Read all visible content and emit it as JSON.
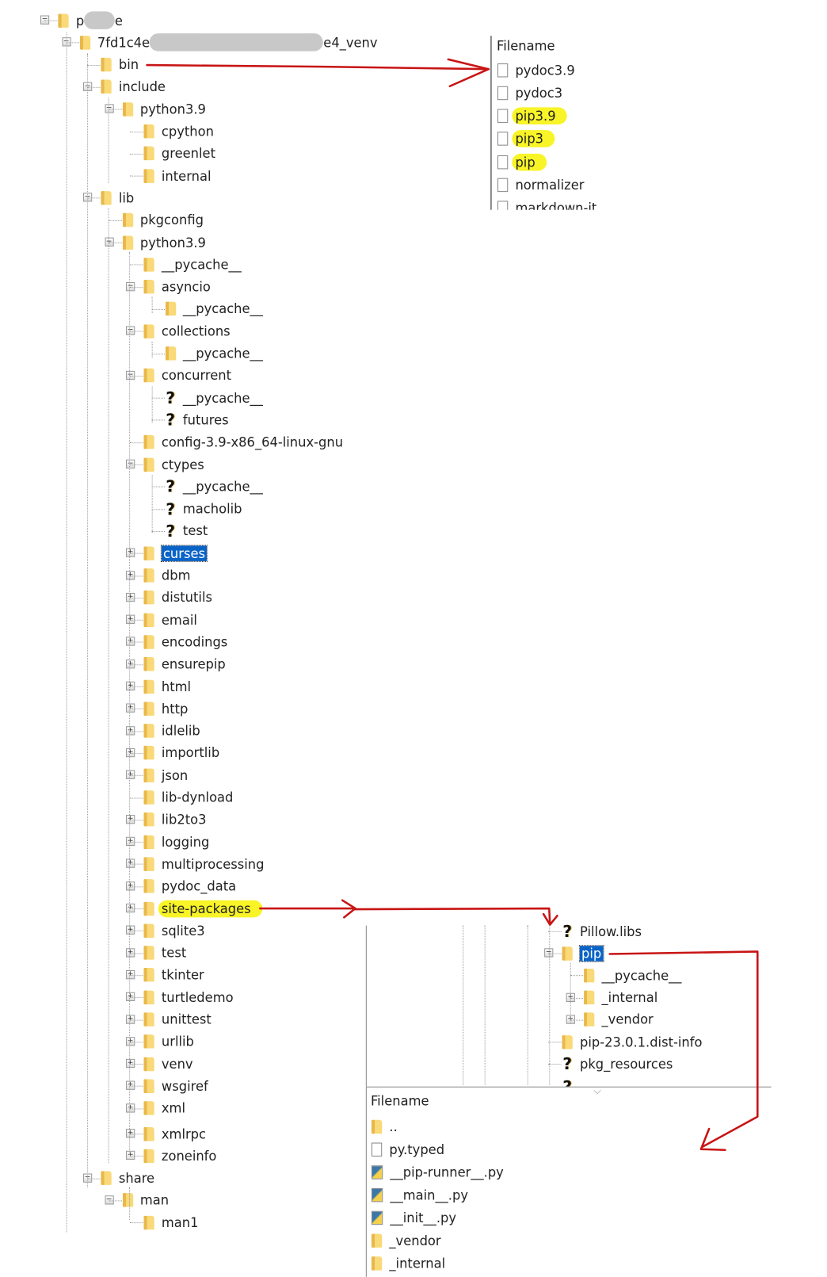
{
  "tree": [
    {
      "level": 0,
      "text": "p",
      "suffix": "e",
      "redacted": true,
      "exp": "minus",
      "icon": "folder"
    },
    {
      "level": 1,
      "text": "7fd1c4e",
      "suffix": "e4_venv",
      "redacted": true,
      "exp": "minus",
      "icon": "folder"
    },
    {
      "level": 2,
      "text": "bin",
      "exp": "",
      "icon": "folder"
    },
    {
      "level": 2,
      "text": "include",
      "exp": "minus",
      "icon": "folder"
    },
    {
      "level": 3,
      "text": "python3.9",
      "exp": "minus",
      "icon": "folder"
    },
    {
      "level": 4,
      "text": "cpython",
      "exp": "",
      "icon": "folder"
    },
    {
      "level": 4,
      "text": "greenlet",
      "exp": "",
      "icon": "folder"
    },
    {
      "level": 4,
      "text": "internal",
      "exp": "",
      "icon": "folder"
    },
    {
      "level": 2,
      "text": "lib",
      "exp": "minus",
      "icon": "folder"
    },
    {
      "level": 3,
      "text": "pkgconfig",
      "exp": "",
      "icon": "folder"
    },
    {
      "level": 3,
      "text": "python3.9",
      "exp": "minus",
      "icon": "folder"
    },
    {
      "level": 4,
      "text": "__pycache__",
      "exp": "",
      "icon": "folder"
    },
    {
      "level": 4,
      "text": "asyncio",
      "exp": "minus",
      "icon": "folder"
    },
    {
      "level": 5,
      "text": "__pycache__",
      "exp": "",
      "icon": "folder"
    },
    {
      "level": 4,
      "text": "collections",
      "exp": "minus",
      "icon": "folder"
    },
    {
      "level": 5,
      "text": "__pycache__",
      "exp": "",
      "icon": "folder"
    },
    {
      "level": 4,
      "text": "concurrent",
      "exp": "minus",
      "icon": "folder"
    },
    {
      "level": 5,
      "text": "__pycache__",
      "exp": "",
      "icon": "unknown"
    },
    {
      "level": 5,
      "text": "futures",
      "exp": "",
      "icon": "unknown"
    },
    {
      "level": 4,
      "text": "config-3.9-x86_64-linux-gnu",
      "exp": "",
      "icon": "folder"
    },
    {
      "level": 4,
      "text": "ctypes",
      "exp": "minus",
      "icon": "folder"
    },
    {
      "level": 5,
      "text": "__pycache__",
      "exp": "",
      "icon": "unknown"
    },
    {
      "level": 5,
      "text": "macholib",
      "exp": "",
      "icon": "unknown"
    },
    {
      "level": 5,
      "text": "test",
      "exp": "",
      "icon": "unknown"
    },
    {
      "level": 4,
      "text": "curses",
      "exp": "plus",
      "icon": "folder",
      "selected": true
    },
    {
      "level": 4,
      "text": "dbm",
      "exp": "plus",
      "icon": "folder"
    },
    {
      "level": 4,
      "text": "distutils",
      "exp": "plus",
      "icon": "folder"
    },
    {
      "level": 4,
      "text": "email",
      "exp": "plus",
      "icon": "folder"
    },
    {
      "level": 4,
      "text": "encodings",
      "exp": "plus",
      "icon": "folder"
    },
    {
      "level": 4,
      "text": "ensurepip",
      "exp": "plus",
      "icon": "folder"
    },
    {
      "level": 4,
      "text": "html",
      "exp": "plus",
      "icon": "folder"
    },
    {
      "level": 4,
      "text": "http",
      "exp": "plus",
      "icon": "folder"
    },
    {
      "level": 4,
      "text": "idlelib",
      "exp": "plus",
      "icon": "folder"
    },
    {
      "level": 4,
      "text": "importlib",
      "exp": "plus",
      "icon": "folder"
    },
    {
      "level": 4,
      "text": "json",
      "exp": "plus",
      "icon": "folder"
    },
    {
      "level": 4,
      "text": "lib-dynload",
      "exp": "",
      "icon": "folder"
    },
    {
      "level": 4,
      "text": "lib2to3",
      "exp": "plus",
      "icon": "folder"
    },
    {
      "level": 4,
      "text": "logging",
      "exp": "plus",
      "icon": "folder"
    },
    {
      "level": 4,
      "text": "multiprocessing",
      "exp": "plus",
      "icon": "folder"
    },
    {
      "level": 4,
      "text": "pydoc_data",
      "exp": "plus",
      "icon": "folder"
    },
    {
      "level": 4,
      "text": "site-packages",
      "exp": "plus",
      "icon": "folder",
      "highlight": true
    },
    {
      "level": 4,
      "text": "sqlite3",
      "exp": "plus",
      "icon": "folder"
    },
    {
      "level": 4,
      "text": "test",
      "exp": "plus",
      "icon": "folder"
    },
    {
      "level": 4,
      "text": "tkinter",
      "exp": "plus",
      "icon": "folder"
    },
    {
      "level": 4,
      "text": "turtledemo",
      "exp": "plus",
      "icon": "folder"
    },
    {
      "level": 4,
      "text": "unittest",
      "exp": "plus",
      "icon": "folder"
    },
    {
      "level": 4,
      "text": "urllib",
      "exp": "plus",
      "icon": "folder"
    },
    {
      "level": 4,
      "text": "venv",
      "exp": "plus",
      "icon": "folder"
    },
    {
      "level": 4,
      "text": "wsgiref",
      "exp": "plus",
      "icon": "folder"
    },
    {
      "level": 4,
      "text": "xml",
      "exp": "plus",
      "icon": "folder"
    },
    {
      "level": 4,
      "text": "xmlrpc",
      "exp": "plus",
      "icon": "folder"
    },
    {
      "level": 4,
      "text": "zoneinfo",
      "exp": "plus",
      "icon": "folder"
    },
    {
      "level": 2,
      "text": "share",
      "exp": "minus",
      "icon": "folder"
    },
    {
      "level": 3,
      "text": "man",
      "exp": "minus",
      "icon": "folder"
    },
    {
      "level": 4,
      "text": "man1",
      "exp": "",
      "icon": "folder"
    }
  ],
  "bin_panel": {
    "header": "Filename",
    "files": [
      {
        "text": "pydoc3.9",
        "icon": "file"
      },
      {
        "text": "pydoc3",
        "icon": "file"
      },
      {
        "text": "pip3.9",
        "icon": "file",
        "highlight": true
      },
      {
        "text": "pip3",
        "icon": "file",
        "highlight": true
      },
      {
        "text": "pip",
        "icon": "file",
        "highlight": true
      },
      {
        "text": "normalizer",
        "icon": "file"
      },
      {
        "text": "markdown-it",
        "icon": "file"
      }
    ]
  },
  "site_panel": {
    "rows": [
      {
        "level": 0,
        "text": "Pillow.libs",
        "exp": "",
        "icon": "unknown"
      },
      {
        "level": 0,
        "text": "pip",
        "exp": "minus",
        "icon": "folder",
        "selected": true
      },
      {
        "level": 1,
        "text": "__pycache__",
        "exp": "",
        "icon": "folder"
      },
      {
        "level": 1,
        "text": "_internal",
        "exp": "plus",
        "icon": "folder"
      },
      {
        "level": 1,
        "text": "_vendor",
        "exp": "plus",
        "icon": "folder"
      },
      {
        "level": 0,
        "text": "pip-23.0.1.dist-info",
        "exp": "",
        "icon": "folder"
      },
      {
        "level": 0,
        "text": "pkg_resources",
        "exp": "",
        "icon": "unknown"
      }
    ]
  },
  "pip_panel": {
    "header": "Filename",
    "files": [
      {
        "text": "..",
        "icon": "folder"
      },
      {
        "text": "py.typed",
        "icon": "file"
      },
      {
        "text": "__pip-runner__.py",
        "icon": "python"
      },
      {
        "text": "__main__.py",
        "icon": "python"
      },
      {
        "text": "__init__.py",
        "icon": "python"
      },
      {
        "text": "_vendor",
        "icon": "folder"
      },
      {
        "text": "_internal",
        "icon": "folder"
      }
    ]
  },
  "colors": {
    "annotation_arrow": "#c81414",
    "highlight": "#f8f427",
    "selection": "#0a64c8"
  }
}
